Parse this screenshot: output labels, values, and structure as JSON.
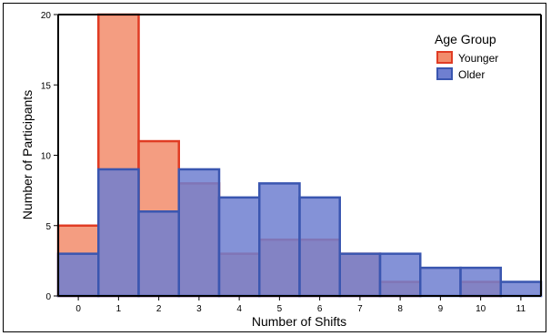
{
  "chart_data": {
    "type": "bar",
    "xlabel": "Number of Shifts",
    "ylabel": "Number of Participants",
    "xlim": [
      -0.5,
      11.5
    ],
    "ylim": [
      0,
      20
    ],
    "x_ticks": [
      0,
      1,
      2,
      3,
      4,
      5,
      6,
      7,
      8,
      9,
      10,
      11
    ],
    "y_ticks": [
      0,
      5,
      10,
      15,
      20
    ],
    "x_tick_labels": [
      "0",
      "1",
      "2",
      "3",
      "4",
      "5",
      "6",
      "7",
      "8",
      "9",
      "10",
      "11"
    ],
    "y_tick_labels": [
      "0",
      "5",
      "10",
      "15",
      "20"
    ],
    "grid": false,
    "legend": {
      "title": "Age Group",
      "position": "top-right",
      "entries": [
        "Younger",
        "Older"
      ]
    },
    "series": [
      {
        "name": "Younger",
        "fill": "#f28c6b",
        "stroke": "#e03c24",
        "x": [
          0,
          1,
          2,
          3,
          4,
          5,
          6,
          7,
          8,
          9,
          10,
          11
        ],
        "values": [
          5,
          20,
          11,
          8,
          3,
          4,
          4,
          3,
          1,
          0,
          1,
          0
        ]
      },
      {
        "name": "Older",
        "fill": "#6f7fd0",
        "stroke": "#3a56b0",
        "x": [
          0,
          1,
          2,
          3,
          4,
          5,
          6,
          7,
          8,
          9,
          10,
          11
        ],
        "values": [
          3,
          9,
          6,
          9,
          7,
          8,
          7,
          3,
          3,
          2,
          2,
          1
        ]
      }
    ]
  }
}
